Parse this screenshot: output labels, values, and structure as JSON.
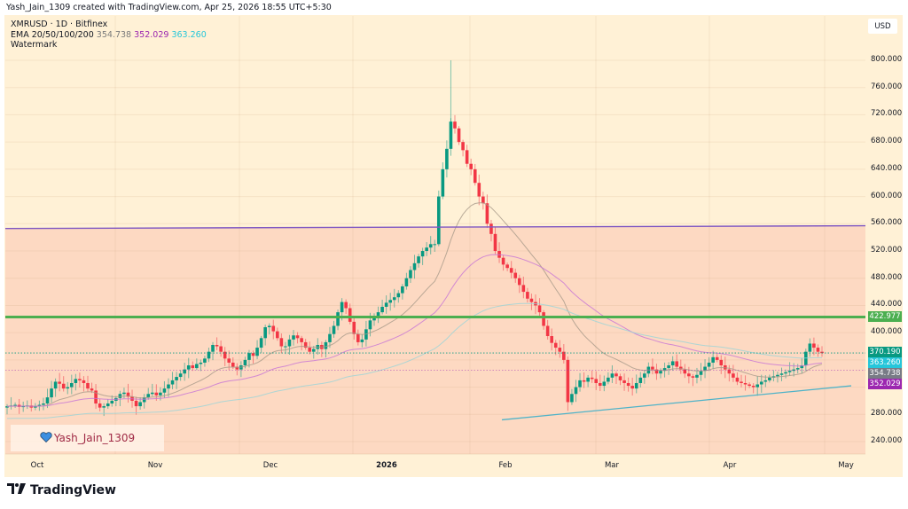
{
  "header": {
    "credit": "Yash_Jain_1309 created with TradingView.com, Apr 25, 2026 18:55 UTC+5:30"
  },
  "legend": {
    "symbol_line": "XMRUSD · 1D · Bitfinex",
    "ema_label": "EMA 20/50/100/200",
    "ema_values": [
      "354.738",
      "352.029",
      "363.260"
    ],
    "watermark_label": "Watermark"
  },
  "price_scale": {
    "currency": "USD",
    "ticks": [
      "800.000",
      "760.000",
      "720.000",
      "680.000",
      "640.000",
      "600.000",
      "560.000",
      "520.000",
      "480.000",
      "440.000",
      "400.000",
      "280.000",
      "240.000"
    ],
    "labels": [
      {
        "value": "422.977",
        "color": "#4caf50"
      },
      {
        "value": "370.190",
        "color": "#089981"
      },
      {
        "value": "363.260",
        "color": "#26c6da"
      },
      {
        "value": "354.738",
        "color": "#787b86"
      },
      {
        "value": "352.029",
        "color": "#9c27b0"
      }
    ]
  },
  "time_scale": {
    "ticks": [
      "Oct",
      "Nov",
      "Dec",
      "2026",
      "Feb",
      "Mar",
      "Apr",
      "May"
    ]
  },
  "watermark": {
    "text": "Yash_Jain_1309",
    "icon": "blue-heart-icon"
  },
  "footer": {
    "brand": "TradingView"
  },
  "colors": {
    "background": "#fff1d6",
    "zone": "#fdd9c2",
    "up": "#089981",
    "down": "#f23645",
    "support_line": "#4caf50",
    "resistance_line": "#7e57c2",
    "trend_line": "#4fb3c8"
  },
  "chart_data": {
    "type": "candlestick",
    "title": "XMRUSD · 1D · Bitfinex",
    "xlabel": "",
    "ylabel": "USD",
    "ylim": [
      220,
      820
    ],
    "x_ticks": [
      "Oct",
      "Nov",
      "Dec",
      "2026",
      "Feb",
      "Mar",
      "Apr",
      "May"
    ],
    "horizontal_levels": [
      {
        "name": "support",
        "value": 422.977,
        "color": "#4caf50"
      },
      {
        "name": "resistance",
        "value": 555,
        "color": "#7e57c2"
      }
    ],
    "indicators": {
      "EMA": {
        "periods": [
          20,
          50,
          100,
          200
        ],
        "last_values": [
          354.738,
          352.029,
          363.26
        ]
      }
    },
    "last_close": 370.19,
    "approx_closes": [
      292,
      293,
      294,
      291,
      292,
      293,
      290,
      292,
      294,
      296,
      305,
      318,
      328,
      325,
      318,
      320,
      326,
      332,
      330,
      326,
      318,
      315,
      296,
      290,
      292,
      296,
      300,
      304,
      310,
      312,
      306,
      300,
      292,
      298,
      305,
      310,
      312,
      308,
      312,
      318,
      324,
      330,
      335,
      340,
      346,
      352,
      348,
      354,
      356,
      362,
      372,
      382,
      380,
      372,
      362,
      356,
      350,
      346,
      352,
      360,
      370,
      366,
      378,
      392,
      408,
      410,
      402,
      392,
      380,
      380,
      390,
      396,
      392,
      386,
      378,
      372,
      376,
      382,
      376,
      386,
      398,
      410,
      430,
      445,
      436,
      416,
      398,
      386,
      390,
      405,
      418,
      424,
      430,
      438,
      444,
      448,
      452,
      458,
      468,
      480,
      492,
      502,
      512,
      520,
      525,
      530,
      530,
      600,
      640,
      670,
      710,
      700,
      680,
      668,
      648,
      640,
      620,
      600,
      590,
      560,
      545,
      520,
      510,
      500,
      495,
      488,
      480,
      470,
      460,
      450,
      445,
      440,
      430,
      410,
      395,
      385,
      378,
      372,
      360,
      298,
      310,
      320,
      330,
      328,
      334,
      332,
      326,
      322,
      328,
      334,
      340,
      336,
      330,
      326,
      322,
      318,
      326,
      334,
      340,
      350,
      346,
      340,
      344,
      348,
      352,
      358,
      350,
      346,
      340,
      336,
      334,
      338,
      344,
      350,
      356,
      364,
      360,
      352,
      346,
      340,
      334,
      328,
      326,
      324,
      322,
      320,
      324,
      328,
      330,
      334,
      336,
      338,
      340,
      342,
      344,
      346,
      348,
      352,
      372,
      384,
      378,
      372,
      370
    ]
  }
}
